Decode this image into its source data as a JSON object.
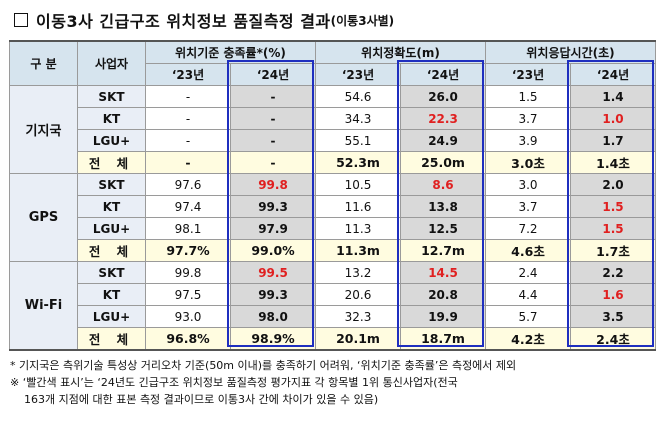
{
  "title": {
    "main": "이동3사 긴급구조 위치정보 품질측정 결과",
    "sub": "(이통3사별)"
  },
  "header": {
    "category": "구 분",
    "carrier": "사업자",
    "groups": [
      "위치기준 충족률*(%)",
      "위치정확도(m)",
      "위치응답시간(초)"
    ],
    "years": [
      "‘23년",
      "‘24년",
      "‘23년",
      "‘24년",
      "‘23년",
      "‘24년"
    ]
  },
  "sections": [
    {
      "name": "기지국",
      "rows": [
        {
          "carrier": "SKT",
          "v": [
            "-",
            "-",
            "54.6",
            "26.0",
            "1.5",
            "1.4"
          ]
        },
        {
          "carrier": "KT",
          "v": [
            "-",
            "-",
            "34.3",
            "22.3",
            "3.7",
            "1.0"
          ]
        },
        {
          "carrier": "LGU+",
          "v": [
            "-",
            "-",
            "55.1",
            "24.9",
            "3.9",
            "1.7"
          ]
        },
        {
          "carrier": "전 체",
          "v": [
            "-",
            "-",
            "52.3m",
            "25.0m",
            "3.0초",
            "1.4초"
          ]
        }
      ]
    },
    {
      "name": "GPS",
      "rows": [
        {
          "carrier": "SKT",
          "v": [
            "97.6",
            "99.8",
            "10.5",
            "8.6",
            "3.0",
            "2.0"
          ]
        },
        {
          "carrier": "KT",
          "v": [
            "97.4",
            "99.3",
            "11.6",
            "13.8",
            "3.7",
            "1.5"
          ]
        },
        {
          "carrier": "LGU+",
          "v": [
            "98.1",
            "97.9",
            "11.3",
            "12.5",
            "7.2",
            "1.5"
          ]
        },
        {
          "carrier": "전 체",
          "v": [
            "97.7%",
            "99.0%",
            "11.3m",
            "12.7m",
            "4.6초",
            "1.7초"
          ]
        }
      ]
    },
    {
      "name": "Wi-Fi",
      "rows": [
        {
          "carrier": "SKT",
          "v": [
            "99.8",
            "99.5",
            "13.2",
            "14.5",
            "2.4",
            "2.2"
          ]
        },
        {
          "carrier": "KT",
          "v": [
            "97.5",
            "99.3",
            "20.6",
            "20.8",
            "4.4",
            "1.6"
          ]
        },
        {
          "carrier": "LGU+",
          "v": [
            "93.0",
            "98.0",
            "32.3",
            "19.9",
            "5.7",
            "3.5"
          ]
        },
        {
          "carrier": "전 체",
          "v": [
            "96.8%",
            "98.9%",
            "20.1m",
            "18.7m",
            "4.2초",
            "2.4초"
          ]
        }
      ]
    }
  ],
  "notes": [
    "* 기지국은 측위기술 특성상 거리오차 기준(50m 이내)를 충족하기 어려워, ‘위치기준 충족률’은 측정에서 제외",
    "※ ‘빨간색 표시’는 ‘24년도 긴급구조 위치정보 품질측정 평가지표 각 항목별 1위 통신사업자(전국",
    "163개 지점에 대한 표본 측정 결과이므로 이통3사 간에 차이가 있을 수 있음)"
  ],
  "colors": {
    "header_bg": "#d6e4ee",
    "highlight_red": "#e02020",
    "box_blue": "#1f2fbf",
    "total_bg": "#fffce0",
    "gray": "#d9d9d9"
  }
}
